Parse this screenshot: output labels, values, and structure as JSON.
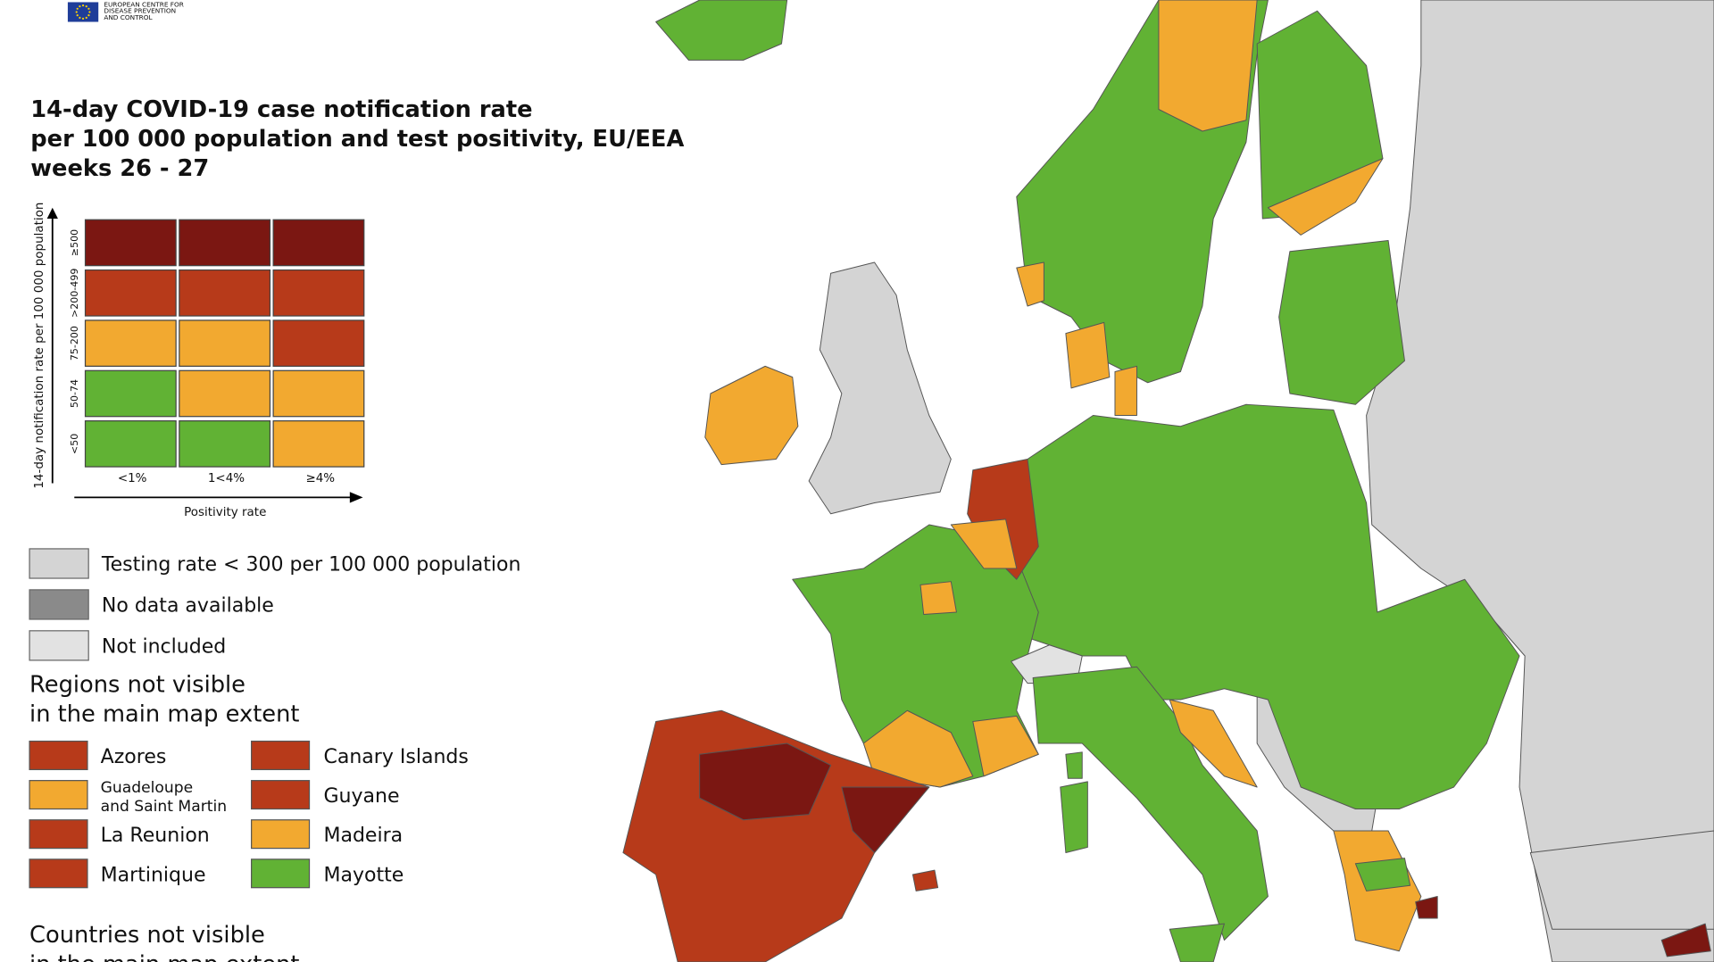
{
  "header": {
    "logo_text": [
      "EUROPEAN CENTRE FOR",
      "DISEASE PREVENTION",
      "AND CONTROL"
    ],
    "title": [
      "14-day COVID-19 case notification rate",
      "per 100 000 population and test positivity, EU/EEA",
      "weeks 26 - 27"
    ]
  },
  "matrix": {
    "y_axis_label": "14-day notification rate per 100 000 population",
    "x_axis_label": "Positivity rate",
    "rows": [
      "≥500",
      ">200-499",
      "75-200",
      "50-74",
      "<50"
    ],
    "columns": [
      "<1%",
      "1<4%",
      "≥4%"
    ]
  },
  "legend": {
    "items": [
      "Testing rate < 300 per 100 000 population",
      "No data available",
      "Not included"
    ]
  },
  "regions": {
    "title": [
      "Regions not visible",
      "in the main map extent"
    ],
    "items": [
      [
        "Azores"
      ],
      [
        "Canary Islands"
      ],
      [
        "Guadeloupe",
        "and Saint Martin"
      ],
      [
        "Guyane"
      ],
      [
        "La Reunion"
      ],
      [
        "Madeira"
      ],
      [
        "Martinique"
      ],
      [
        "Mayotte"
      ]
    ]
  },
  "countries": {
    "title": [
      "Countries not visible",
      "in the main map extent"
    ]
  }
}
